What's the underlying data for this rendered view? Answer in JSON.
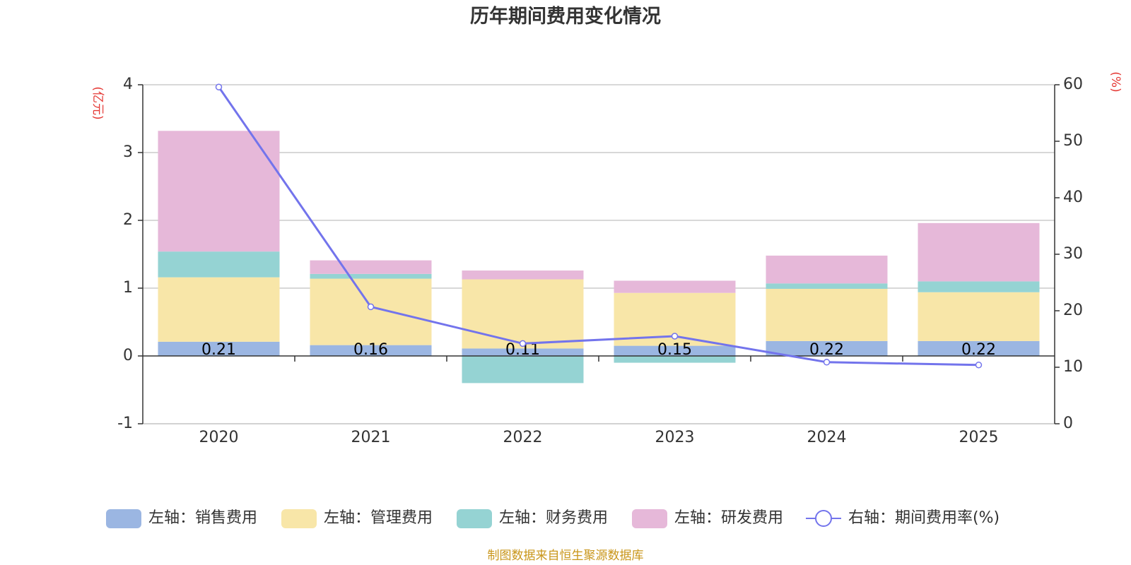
{
  "chart_data": {
    "type": "bar",
    "title": "历年期间费用变化情况",
    "categories": [
      "2020",
      "2021",
      "2022",
      "2023",
      "2024",
      "2025"
    ],
    "left_axis": {
      "unit": "(亿元)",
      "ylim": [
        -1,
        4
      ],
      "ticks": [
        -1,
        0,
        1,
        2,
        3,
        4
      ],
      "tick_labels": [
        "-1",
        "0",
        "1",
        "2",
        "3",
        "4"
      ]
    },
    "right_axis": {
      "unit": "(%)",
      "ylim": [
        0,
        60
      ],
      "ticks": [
        0,
        10,
        20,
        30,
        40,
        50,
        60
      ],
      "tick_labels": [
        "0",
        "10",
        "20",
        "30",
        "40",
        "50",
        "60"
      ]
    },
    "series": [
      {
        "name": "左轴：销售费用",
        "kind": "bar",
        "color": "#9bb6e2",
        "values": [
          0.21,
          0.16,
          0.11,
          0.15,
          0.22,
          0.22
        ]
      },
      {
        "name": "左轴：管理费用",
        "kind": "bar",
        "color": "#f8e6a8",
        "values": [
          0.95,
          0.98,
          1.02,
          0.78,
          0.77,
          0.72
        ]
      },
      {
        "name": "左轴：财务费用",
        "kind": "bar",
        "color": "#95d3d3",
        "values": [
          0.38,
          0.07,
          -0.4,
          -0.1,
          0.08,
          0.16
        ]
      },
      {
        "name": "左轴：研发费用",
        "kind": "bar",
        "color": "#e6b8d9",
        "values": [
          1.78,
          0.2,
          0.13,
          0.18,
          0.41,
          0.86
        ]
      },
      {
        "name": "右轴：期间费用率(%)",
        "kind": "line",
        "axis": "right",
        "color": "#7374ec",
        "values": [
          59.6,
          20.7,
          14.2,
          15.5,
          10.9,
          10.4
        ]
      }
    ],
    "data_labels": [
      "0.21",
      "0.16",
      "0.11",
      "0.15",
      "0.22",
      "0.22"
    ],
    "legend_position": "bottom",
    "grid": true
  },
  "source_note": "制图数据来自恒生聚源数据库"
}
